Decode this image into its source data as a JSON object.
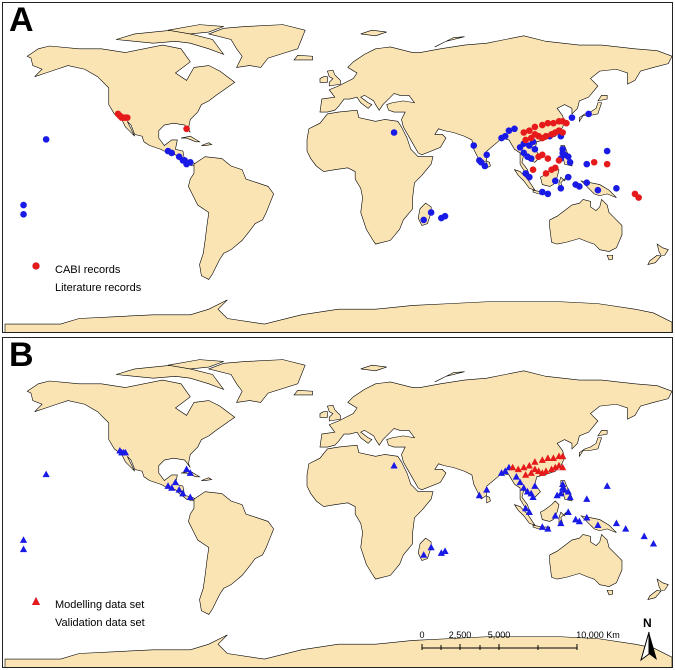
{
  "panels": [
    {
      "letter": "A",
      "legend": [
        {
          "label": "CABI records",
          "color": "#1a1ae6",
          "symbol": "circle"
        },
        {
          "label": "Literature records",
          "color": "#e61a1a",
          "symbol": "circle"
        }
      ]
    },
    {
      "letter": "B",
      "legend": [
        {
          "label": "Modelling data set",
          "color": "#1a1ae6",
          "symbol": "triangle"
        },
        {
          "label": "Validation data set",
          "color": "#e61a1a",
          "symbol": "triangle"
        }
      ]
    }
  ],
  "scale_bar": {
    "ticks": [
      "0",
      "2,500",
      "5,000",
      "10,000 Km"
    ]
  },
  "north_arrow": {
    "label": "N"
  },
  "colors": {
    "land": "#fbe4b4",
    "border": "#000000",
    "ocean": "#ffffff",
    "blue": "#1a1ae6",
    "red": "#e61a1a"
  },
  "points_a": {
    "blue": [
      [
        -157.8,
        21.3
      ],
      [
        -170,
        -14
      ],
      [
        -170,
        -19
      ],
      [
        -80,
        9
      ],
      [
        -84,
        10
      ],
      [
        -86,
        12
      ],
      [
        -83,
        10
      ],
      [
        -82,
        8
      ],
      [
        -90,
        14
      ],
      [
        -92,
        15
      ],
      [
        30,
        25
      ],
      [
        55.5,
        -21
      ],
      [
        57.5,
        -20
      ],
      [
        50,
        -18
      ],
      [
        46,
        -22
      ],
      [
        73,
        18
      ],
      [
        77,
        9
      ],
      [
        79,
        7
      ],
      [
        80,
        13
      ],
      [
        76,
        10
      ],
      [
        88,
        22
      ],
      [
        90,
        23
      ],
      [
        92,
        26
      ],
      [
        95,
        27
      ],
      [
        98,
        17
      ],
      [
        100,
        14
      ],
      [
        102,
        12
      ],
      [
        104,
        11
      ],
      [
        106,
        16
      ],
      [
        103,
        18
      ],
      [
        100,
        19
      ],
      [
        105,
        20
      ],
      [
        121,
        14
      ],
      [
        122,
        13
      ],
      [
        124,
        12
      ],
      [
        121,
        16
      ],
      [
        125,
        9
      ],
      [
        120,
        11
      ],
      [
        101,
        3
      ],
      [
        103,
        1
      ],
      [
        110,
        -7
      ],
      [
        113,
        -8
      ],
      [
        117,
        -1
      ],
      [
        120,
        -5
      ],
      [
        124,
        1
      ],
      [
        128,
        -3
      ],
      [
        130,
        -4
      ],
      [
        134,
        -2
      ],
      [
        140,
        -6
      ],
      [
        145,
        15
      ],
      [
        134,
        8
      ],
      [
        114,
        23
      ],
      [
        120,
        23
      ],
      [
        126,
        33
      ],
      [
        135,
        35
      ],
      [
        150,
        -5
      ]
    ],
    "red": [
      [
        -118,
        34
      ],
      [
        -117,
        33
      ],
      [
        -116,
        33
      ],
      [
        -115,
        33
      ],
      [
        -114,
        33
      ],
      [
        -119,
        35
      ],
      [
        -82,
        27
      ],
      [
        100,
        25
      ],
      [
        103,
        26
      ],
      [
        106,
        24
      ],
      [
        108,
        23
      ],
      [
        110,
        22
      ],
      [
        112,
        23
      ],
      [
        115,
        24
      ],
      [
        117,
        25
      ],
      [
        119,
        26
      ],
      [
        121,
        25
      ],
      [
        104,
        22
      ],
      [
        101,
        21
      ],
      [
        106,
        28
      ],
      [
        110,
        29
      ],
      [
        113,
        30
      ],
      [
        116,
        30
      ],
      [
        119,
        31
      ],
      [
        121,
        31
      ],
      [
        123,
        30
      ],
      [
        108,
        12
      ],
      [
        110,
        13
      ],
      [
        113,
        11
      ],
      [
        115,
        5
      ],
      [
        117,
        6
      ],
      [
        119,
        10
      ],
      [
        105,
        5
      ],
      [
        112,
        3
      ],
      [
        138,
        9
      ],
      [
        145,
        8
      ],
      [
        160,
        -8
      ],
      [
        162,
        -10
      ]
    ]
  },
  "points_b": {
    "blue": [
      [
        -157.8,
        21.3
      ],
      [
        -170,
        -14
      ],
      [
        -170,
        -19
      ],
      [
        -118,
        34
      ],
      [
        -117,
        33
      ],
      [
        -116,
        33
      ],
      [
        -115,
        33
      ],
      [
        -82,
        24
      ],
      [
        -80,
        22
      ],
      [
        -88,
        17
      ],
      [
        -84,
        11
      ],
      [
        -86,
        13
      ],
      [
        -80,
        9
      ],
      [
        -90,
        14
      ],
      [
        -92,
        15
      ],
      [
        30,
        26
      ],
      [
        55.5,
        -21
      ],
      [
        57.5,
        -20
      ],
      [
        50,
        -18
      ],
      [
        46,
        -22
      ],
      [
        76,
        10
      ],
      [
        80,
        13
      ],
      [
        88,
        22
      ],
      [
        90,
        23
      ],
      [
        92,
        25
      ],
      [
        96,
        20
      ],
      [
        98,
        17
      ],
      [
        100,
        14
      ],
      [
        102,
        12
      ],
      [
        104,
        11
      ],
      [
        106,
        15
      ],
      [
        121,
        14
      ],
      [
        122,
        13
      ],
      [
        124,
        12
      ],
      [
        121,
        16
      ],
      [
        125,
        9
      ],
      [
        120,
        11
      ],
      [
        118,
        10
      ],
      [
        101,
        3
      ],
      [
        103,
        1
      ],
      [
        110,
        -7
      ],
      [
        113,
        -8
      ],
      [
        117,
        -1
      ],
      [
        120,
        -5
      ],
      [
        124,
        1
      ],
      [
        128,
        -3
      ],
      [
        130,
        -4
      ],
      [
        134,
        -2
      ],
      [
        140,
        -6
      ],
      [
        145,
        15
      ],
      [
        134,
        8
      ],
      [
        150,
        -5
      ],
      [
        155,
        -8
      ],
      [
        165,
        -12
      ],
      [
        170,
        -16
      ],
      [
        105,
        9
      ]
    ],
    "red": [
      [
        100,
        25
      ],
      [
        103,
        26
      ],
      [
        106,
        24
      ],
      [
        108,
        23
      ],
      [
        110,
        22
      ],
      [
        112,
        23
      ],
      [
        115,
        24
      ],
      [
        117,
        25
      ],
      [
        119,
        26
      ],
      [
        121,
        25
      ],
      [
        104,
        22
      ],
      [
        101,
        21
      ],
      [
        106,
        28
      ],
      [
        110,
        29
      ],
      [
        113,
        30
      ],
      [
        116,
        30
      ],
      [
        119,
        31
      ],
      [
        121,
        31
      ],
      [
        97,
        24
      ],
      [
        94,
        25
      ]
    ]
  }
}
